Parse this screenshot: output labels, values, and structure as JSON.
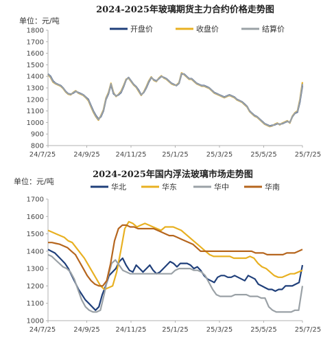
{
  "charts": [
    {
      "title": "2024-2025年玻璃期货主力合约价格走势图",
      "unit": "单位：元/吨",
      "chart_data": {
        "type": "line",
        "title": "2024-2025年玻璃期货主力合约价格走势图",
        "ylabel": "单位：元/吨",
        "ylim": [
          800,
          1800
        ],
        "yticks": [
          800,
          900,
          1000,
          1100,
          1200,
          1300,
          1400,
          1500,
          1600,
          1700,
          1800
        ],
        "xticks": [
          "24/7/25",
          "24/9/25",
          "24/11/25",
          "25/1/25",
          "25/3/25",
          "25/5/25",
          "25/7/25"
        ],
        "grid": false,
        "legend_position": "top",
        "series": [
          {
            "name": "开盘价",
            "color": "#1f3f7a",
            "values": [
              1420,
              1400,
              1360,
              1340,
              1330,
              1320,
              1300,
              1270,
              1250,
              1245,
              1255,
              1270,
              1260,
              1250,
              1240,
              1220,
              1200,
              1150,
              1100,
              1060,
              1030,
              1050,
              1100,
              1200,
              1250,
              1330,
              1250,
              1230,
              1240,
              1260,
              1310,
              1370,
              1390,
              1360,
              1330,
              1310,
              1280,
              1240,
              1260,
              1300,
              1350,
              1390,
              1370,
              1360,
              1380,
              1400,
              1390,
              1380,
              1360,
              1340,
              1330,
              1320,
              1340,
              1420,
              1420,
              1400,
              1380,
              1380,
              1360,
              1340,
              1330,
              1320,
              1320,
              1310,
              1300,
              1280,
              1260,
              1250,
              1240,
              1230,
              1220,
              1230,
              1240,
              1230,
              1220,
              1200,
              1190,
              1180,
              1160,
              1140,
              1100,
              1080,
              1060,
              1050,
              1030,
              1010,
              990,
              980,
              970,
              975,
              980,
              990,
              985,
              990,
              1000,
              1010,
              1000,
              1050,
              1080,
              1090,
              1180,
              1320
            ]
          },
          {
            "name": "收盘价",
            "color": "#e8b021",
            "values": [
              1415,
              1390,
              1350,
              1335,
              1325,
              1315,
              1295,
              1265,
              1245,
              1240,
              1260,
              1275,
              1255,
              1245,
              1235,
              1215,
              1190,
              1140,
              1090,
              1050,
              1020,
              1060,
              1110,
              1210,
              1260,
              1340,
              1260,
              1225,
              1245,
              1270,
              1320,
              1375,
              1385,
              1355,
              1325,
              1305,
              1270,
              1235,
              1265,
              1310,
              1360,
              1395,
              1365,
              1355,
              1385,
              1405,
              1385,
              1375,
              1355,
              1335,
              1325,
              1325,
              1345,
              1430,
              1415,
              1395,
              1375,
              1375,
              1355,
              1335,
              1325,
              1315,
              1315,
              1305,
              1295,
              1275,
              1255,
              1245,
              1235,
              1225,
              1215,
              1225,
              1235,
              1225,
              1215,
              1195,
              1185,
              1175,
              1155,
              1135,
              1095,
              1075,
              1055,
              1045,
              1025,
              1005,
              985,
              975,
              965,
              970,
              985,
              995,
              980,
              995,
              1005,
              1015,
              995,
              1055,
              1085,
              1100,
              1200,
              1350
            ]
          },
          {
            "name": "结算价",
            "color": "#9aa1a6",
            "values": [
              1418,
              1395,
              1355,
              1338,
              1328,
              1318,
              1298,
              1268,
              1248,
              1243,
              1258,
              1272,
              1258,
              1248,
              1238,
              1218,
              1195,
              1145,
              1095,
              1055,
              1025,
              1055,
              1105,
              1205,
              1255,
              1335,
              1255,
              1228,
              1243,
              1265,
              1315,
              1372,
              1388,
              1358,
              1328,
              1308,
              1275,
              1238,
              1262,
              1305,
              1355,
              1392,
              1368,
              1358,
              1382,
              1402,
              1388,
              1378,
              1358,
              1338,
              1328,
              1322,
              1342,
              1425,
              1418,
              1398,
              1378,
              1378,
              1358,
              1338,
              1328,
              1318,
              1318,
              1308,
              1298,
              1278,
              1258,
              1248,
              1238,
              1228,
              1218,
              1228,
              1238,
              1228,
              1218,
              1198,
              1188,
              1178,
              1158,
              1138,
              1098,
              1078,
              1058,
              1048,
              1028,
              1008,
              988,
              978,
              968,
              972,
              982,
              992,
              982,
              992,
              1002,
              1012,
              998,
              1052,
              1082,
              1095,
              1190,
              1335
            ]
          }
        ]
      }
    },
    {
      "title": "2024-2025年国内浮法玻璃市场走势图",
      "unit": "单位：元/吨",
      "chart_data": {
        "type": "line",
        "title": "2024-2025年国内浮法玻璃市场走势图",
        "ylabel": "单位：元/吨",
        "ylim": [
          1000,
          1700
        ],
        "yticks": [
          1000,
          1100,
          1200,
          1300,
          1400,
          1500,
          1600,
          1700
        ],
        "xticks": [
          "24/7/25",
          "24/9/25",
          "24/11/25",
          "25/1/25",
          "25/3/25",
          "25/5/25",
          "25/7/25"
        ],
        "grid": false,
        "legend_position": "top",
        "series": [
          {
            "name": "华北",
            "color": "#1f3f7a",
            "values": [
              1410,
              1400,
              1390,
              1370,
              1350,
              1330,
              1300,
              1260,
              1220,
              1180,
              1150,
              1120,
              1100,
              1080,
              1060,
              1080,
              1150,
              1200,
              1260,
              1280,
              1300,
              1340,
              1360,
              1320,
              1290,
              1280,
              1320,
              1300,
              1280,
              1300,
              1320,
              1290,
              1270,
              1280,
              1300,
              1320,
              1340,
              1330,
              1310,
              1330,
              1330,
              1330,
              1320,
              1300,
              1310,
              1290,
              1260,
              1240,
              1230,
              1220,
              1250,
              1260,
              1260,
              1250,
              1250,
              1260,
              1250,
              1240,
              1230,
              1260,
              1250,
              1240,
              1210,
              1200,
              1190,
              1180,
              1180,
              1170,
              1180,
              1180,
              1200,
              1200,
              1200,
              1210,
              1220,
              1320
            ]
          },
          {
            "name": "华东",
            "color": "#e8b021",
            "values": [
              1520,
              1510,
              1500,
              1490,
              1480,
              1460,
              1450,
              1420,
              1390,
              1360,
              1320,
              1280,
              1240,
              1200,
              1180,
              1190,
              1200,
              1280,
              1400,
              1530,
              1570,
              1560,
              1540,
              1550,
              1560,
              1550,
              1540,
              1530,
              1520,
              1540,
              1540,
              1540,
              1530,
              1520,
              1500,
              1480,
              1460,
              1440,
              1420,
              1400,
              1380,
              1370,
              1370,
              1370,
              1370,
              1370,
              1360,
              1360,
              1360,
              1360,
              1370,
              1360,
              1330,
              1310,
              1300,
              1280,
              1260,
              1250,
              1250,
              1260,
              1270,
              1270,
              1280,
              1290
            ]
          },
          {
            "name": "华中",
            "color": "#9aa1a6",
            "values": [
              1380,
              1370,
              1350,
              1330,
              1310,
              1300,
              1280,
              1240,
              1180,
              1120,
              1080,
              1060,
              1050,
              1050,
              1060,
              1150,
              1250,
              1330,
              1350,
              1320,
              1290,
              1280,
              1270,
              1270,
              1270,
              1270,
              1270,
              1270,
              1270,
              1270,
              1270,
              1270,
              1270,
              1270,
              1290,
              1300,
              1300,
              1300,
              1300,
              1290,
              1290,
              1280,
              1260,
              1220,
              1180,
              1150,
              1140,
              1140,
              1140,
              1140,
              1150,
              1150,
              1150,
              1150,
              1140,
              1140,
              1140,
              1130,
              1130,
              1080,
              1060,
              1050,
              1050,
              1050,
              1050,
              1050,
              1060,
              1060,
              1200
            ]
          },
          {
            "name": "华南",
            "color": "#b5651d",
            "values": [
              1450,
              1450,
              1445,
              1440,
              1430,
              1420,
              1400,
              1380,
              1340,
              1300,
              1260,
              1230,
              1210,
              1200,
              1200,
              1230,
              1330,
              1460,
              1530,
              1550,
              1550,
              1540,
              1540,
              1530,
              1530,
              1530,
              1530,
              1530,
              1520,
              1510,
              1500,
              1490,
              1490,
              1480,
              1470,
              1460,
              1450,
              1440,
              1420,
              1400,
              1400,
              1400,
              1400,
              1400,
              1400,
              1400,
              1400,
              1400,
              1400,
              1400,
              1400,
              1400,
              1400,
              1390,
              1390,
              1390,
              1380,
              1380,
              1380,
              1380,
              1380,
              1390,
              1390,
              1390,
              1400,
              1410
            ]
          }
        ]
      }
    }
  ]
}
